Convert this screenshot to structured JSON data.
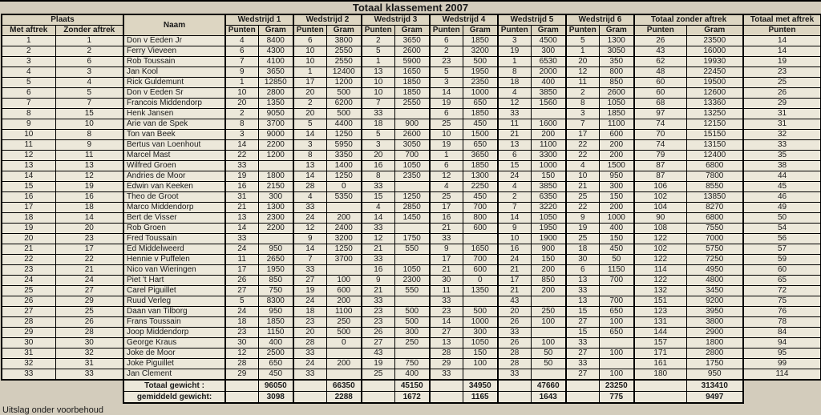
{
  "title": "Totaal klassement 2007",
  "footnote": "Uitslag onder voorbehoud",
  "colors": {
    "background": "#d3ccbc",
    "cell": "#ece8da",
    "header_cell": "#ddd6c2",
    "border": "#000000"
  },
  "header": {
    "plaats": "Plaats",
    "met_aftrek": "Met aftrek",
    "zonder_aftrek": "Zonder aftrek",
    "naam": "Naam",
    "wedstrijden": [
      "Wedstrijd 1",
      "Wedstrijd 2",
      "Wedstrijd 3",
      "Wedstrijd 4",
      "Wedstrijd 5",
      "Wedstrijd 6"
    ],
    "punten": "Punten",
    "gram": "Gram",
    "totaal_zonder": "Totaal zonder aftrek",
    "totaal_met": "Totaal met aftrek"
  },
  "rows": [
    [
      1,
      1,
      "Don v Eeden Jr",
      4,
      8400,
      6,
      3800,
      2,
      3650,
      6,
      1850,
      3,
      4500,
      5,
      1300,
      26,
      23500,
      14
    ],
    [
      2,
      2,
      "Ferry Vieveen",
      6,
      4300,
      10,
      2550,
      5,
      2600,
      2,
      3200,
      19,
      300,
      1,
      3050,
      43,
      16000,
      14
    ],
    [
      3,
      6,
      "Rob Toussain",
      7,
      4100,
      10,
      2550,
      1,
      5900,
      23,
      500,
      1,
      6530,
      20,
      350,
      62,
      19930,
      19
    ],
    [
      4,
      3,
      "Jan Kool",
      9,
      3650,
      1,
      12400,
      13,
      1650,
      5,
      1950,
      8,
      2000,
      12,
      800,
      48,
      22450,
      23
    ],
    [
      5,
      4,
      "Rick Guldemunt",
      1,
      12850,
      17,
      1200,
      10,
      1850,
      3,
      2350,
      18,
      400,
      11,
      850,
      60,
      19500,
      25
    ],
    [
      6,
      5,
      "Don v Eeden Sr",
      10,
      2800,
      20,
      500,
      10,
      1850,
      14,
      1000,
      4,
      3850,
      2,
      2600,
      60,
      12600,
      26
    ],
    [
      7,
      7,
      "Francois Middendorp",
      20,
      1350,
      2,
      6200,
      7,
      2550,
      19,
      650,
      12,
      1560,
      8,
      1050,
      68,
      13360,
      29
    ],
    [
      8,
      15,
      "Henk Jansen",
      2,
      9050,
      20,
      500,
      33,
      "",
      6,
      1850,
      33,
      "",
      3,
      1850,
      97,
      13250,
      31
    ],
    [
      9,
      10,
      "Arie van de Spek",
      8,
      3700,
      5,
      4400,
      18,
      900,
      25,
      450,
      11,
      1600,
      7,
      1100,
      74,
      12150,
      31
    ],
    [
      10,
      8,
      "Ton van Beek",
      3,
      9000,
      14,
      1250,
      5,
      2600,
      10,
      1500,
      21,
      200,
      17,
      600,
      70,
      15150,
      32
    ],
    [
      11,
      9,
      "Bertus van Loenhout",
      14,
      2200,
      3,
      5950,
      3,
      3050,
      19,
      650,
      13,
      1100,
      22,
      200,
      74,
      13150,
      33
    ],
    [
      12,
      11,
      "Marcel Mast",
      22,
      1200,
      8,
      3350,
      20,
      700,
      1,
      3650,
      6,
      3300,
      22,
      200,
      79,
      12400,
      35
    ],
    [
      13,
      13,
      "Wilfred Groen",
      33,
      "",
      13,
      1400,
      16,
      1050,
      6,
      1850,
      15,
      1000,
      4,
      1500,
      87,
      6800,
      38
    ],
    [
      14,
      12,
      "Andries de Moor",
      19,
      1800,
      14,
      1250,
      8,
      2350,
      12,
      1300,
      24,
      150,
      10,
      950,
      87,
      7800,
      44
    ],
    [
      15,
      19,
      "Edwin van Keeken",
      16,
      2150,
      28,
      0,
      33,
      "",
      4,
      2250,
      4,
      3850,
      21,
      300,
      106,
      8550,
      45
    ],
    [
      16,
      16,
      "Theo de Groot",
      31,
      300,
      4,
      5350,
      15,
      1250,
      25,
      450,
      2,
      6350,
      25,
      150,
      102,
      13850,
      46
    ],
    [
      17,
      18,
      "Marco Middendorp",
      21,
      1300,
      33,
      "",
      4,
      2850,
      17,
      700,
      7,
      3220,
      22,
      200,
      104,
      8270,
      49
    ],
    [
      18,
      14,
      "Bert de Visser",
      13,
      2300,
      24,
      200,
      14,
      1450,
      16,
      800,
      14,
      1050,
      9,
      1000,
      90,
      6800,
      50
    ],
    [
      19,
      20,
      "Rob Groen",
      14,
      2200,
      12,
      2400,
      33,
      "",
      21,
      600,
      9,
      1950,
      19,
      400,
      108,
      7550,
      54
    ],
    [
      20,
      23,
      "Fred Toussain",
      33,
      "",
      9,
      3200,
      12,
      1750,
      33,
      "",
      10,
      1900,
      25,
      150,
      122,
      7000,
      56
    ],
    [
      21,
      17,
      "Ed Middelweerd",
      24,
      950,
      14,
      1250,
      21,
      550,
      9,
      1650,
      16,
      900,
      18,
      450,
      102,
      5750,
      57
    ],
    [
      22,
      22,
      "Hennie v Puffelen",
      11,
      2650,
      7,
      3700,
      33,
      "",
      17,
      700,
      24,
      150,
      30,
      50,
      122,
      7250,
      59
    ],
    [
      23,
      21,
      "Nico van Wieringen",
      17,
      1950,
      33,
      "",
      16,
      1050,
      21,
      600,
      21,
      200,
      6,
      1150,
      114,
      4950,
      60
    ],
    [
      24,
      24,
      "Piet 't Hart",
      26,
      850,
      27,
      100,
      9,
      2300,
      30,
      0,
      17,
      850,
      13,
      700,
      122,
      4800,
      65
    ],
    [
      25,
      27,
      "Carel Piguillet",
      27,
      750,
      19,
      600,
      21,
      550,
      11,
      1350,
      21,
      200,
      33,
      "",
      132,
      3450,
      72
    ],
    [
      26,
      29,
      "Ruud Verleg",
      5,
      8300,
      24,
      200,
      33,
      "",
      33,
      "",
      43,
      "",
      13,
      700,
      151,
      9200,
      75
    ],
    [
      27,
      25,
      "Daan van Tilborg",
      24,
      950,
      18,
      1100,
      23,
      500,
      23,
      500,
      20,
      250,
      15,
      650,
      123,
      3950,
      76
    ],
    [
      28,
      26,
      "Frans Toussain",
      18,
      1850,
      23,
      250,
      23,
      500,
      14,
      1000,
      26,
      100,
      27,
      100,
      131,
      3800,
      78
    ],
    [
      29,
      28,
      "Joop Middendorp",
      23,
      1150,
      20,
      500,
      26,
      300,
      27,
      300,
      33,
      "",
      15,
      650,
      144,
      2900,
      84
    ],
    [
      30,
      30,
      "George Kraus",
      30,
      400,
      28,
      0,
      27,
      250,
      13,
      1050,
      26,
      100,
      33,
      "",
      157,
      1800,
      94
    ],
    [
      31,
      32,
      "Joke de Moor",
      12,
      2500,
      33,
      "",
      43,
      "",
      28,
      150,
      28,
      50,
      27,
      100,
      171,
      2800,
      95
    ],
    [
      32,
      31,
      "Joke Piguillet",
      28,
      650,
      24,
      200,
      19,
      750,
      29,
      100,
      28,
      50,
      33,
      "",
      161,
      1750,
      99
    ],
    [
      33,
      33,
      "Jan Clement",
      29,
      450,
      33,
      "",
      25,
      400,
      33,
      "",
      33,
      "",
      27,
      100,
      180,
      950,
      114
    ]
  ],
  "footer": {
    "totaal_label": "Totaal gewicht :",
    "totaal_values": [
      96050,
      66350,
      45150,
      34950,
      47660,
      23250
    ],
    "totaal_gram": 313410,
    "gemiddeld_label": "gemiddeld gewicht:",
    "gemiddeld_values": [
      3098,
      2288,
      1672,
      1165,
      1643,
      775
    ],
    "gemiddeld_gram": 9497
  }
}
